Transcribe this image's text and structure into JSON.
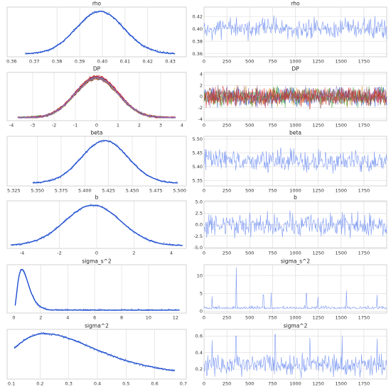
{
  "chart_data": [
    {
      "type": "line",
      "title": "rho",
      "kind": "density",
      "xlim": [
        0.358,
        0.437
      ],
      "xticks": [
        0.36,
        0.37,
        0.38,
        0.39,
        0.4,
        0.41,
        0.42,
        0.43
      ],
      "xticklabels": [
        "0.36",
        "0.37",
        "0.38",
        "0.39",
        "0.40",
        "0.41",
        "0.42",
        "0.43"
      ],
      "xgrid": [
        0.38,
        0.39,
        0.4,
        0.41,
        0.42
      ],
      "dist": {
        "mean": 0.399,
        "sd": 0.0105,
        "lo": 0.366,
        "hi": 0.432
      },
      "series": [
        {
          "color": "#1f4fd0",
          "shape": "gauss"
        }
      ]
    },
    {
      "type": "line",
      "title": "rho",
      "kind": "trace",
      "xlim": [
        0,
        2000
      ],
      "xticks": [
        0,
        250,
        500,
        750,
        1000,
        1250,
        1500,
        1750
      ],
      "xticklabels": [
        "0",
        "250",
        "500",
        "750",
        "1000",
        "1250",
        "1500",
        "1750"
      ],
      "ylim": [
        0.355,
        0.435
      ],
      "yticks": [
        0.36,
        0.38,
        0.4,
        0.42
      ],
      "yticklabels": [
        "0.36",
        "0.38",
        "0.40",
        "0.42"
      ],
      "trace": {
        "center": 0.399,
        "sd": 0.0105,
        "spread": 1.0
      },
      "series": [
        {
          "color": "#6f8ef2"
        }
      ]
    },
    {
      "type": "line",
      "title": "DP",
      "kind": "density",
      "xlim": [
        -4.2,
        4.2
      ],
      "xticks": [
        -4,
        -3,
        -2,
        -1,
        0,
        1,
        2,
        3,
        4
      ],
      "xticklabels": [
        "-4",
        "-3",
        "-2",
        "-1",
        "0",
        "1",
        "2",
        "3",
        "4"
      ],
      "xgrid": [
        -3,
        -2,
        -1,
        0,
        1,
        2,
        3
      ],
      "dist": {
        "mean": 0,
        "sd": 1.0,
        "lo": -3.7,
        "hi": 3.7
      },
      "series": [
        {
          "color": "#1f4fd0",
          "shape": "gauss"
        },
        {
          "color": "#d48a1a",
          "shape": "gauss"
        },
        {
          "color": "#2ca02c",
          "shape": "gauss"
        },
        {
          "color": "#d62728",
          "shape": "gauss"
        },
        {
          "color": "#8c564b",
          "shape": "gauss"
        },
        {
          "color": "#9467bd",
          "shape": "gauss"
        }
      ]
    },
    {
      "type": "line",
      "title": "DP",
      "kind": "trace",
      "xlim": [
        0,
        2000
      ],
      "xticks": [
        0,
        250,
        500,
        750,
        1000,
        1250,
        1500,
        1750
      ],
      "xticklabels": [
        "0",
        "250",
        "500",
        "750",
        "1000",
        "1250",
        "1500",
        "1750"
      ],
      "ylim": [
        -4.3,
        4.3
      ],
      "yticks": [
        -4,
        -2,
        0,
        2,
        4
      ],
      "yticklabels": [
        "-4",
        "-2",
        "0",
        "2",
        "4"
      ],
      "trace": {
        "center": 0,
        "sd": 1.0,
        "spread": 1.0
      },
      "series": [
        {
          "color": "#1f4fd0"
        },
        {
          "color": "#d48a1a"
        },
        {
          "color": "#2ca02c"
        },
        {
          "color": "#9467bd"
        },
        {
          "color": "#8c564b"
        },
        {
          "color": "#d62728"
        }
      ]
    },
    {
      "type": "line",
      "title": "beta",
      "kind": "density",
      "xlim": [
        5.318,
        5.507
      ],
      "xticks": [
        5.325,
        5.35,
        5.375,
        5.4,
        5.425,
        5.45,
        5.475,
        5.5
      ],
      "xticklabels": [
        "5.325",
        "5.350",
        "5.375",
        "5.400",
        "5.425",
        "5.450",
        "5.475",
        "5.500"
      ],
      "xgrid": [
        5.35,
        5.375,
        5.4,
        5.425,
        5.45,
        5.475
      ],
      "dist": {
        "mean": 5.421,
        "sd": 0.0245,
        "lo": 5.345,
        "hi": 5.498
      },
      "series": [
        {
          "color": "#1f4fd0",
          "shape": "gauss"
        }
      ]
    },
    {
      "type": "line",
      "title": "beta",
      "kind": "trace",
      "xlim": [
        0,
        2000
      ],
      "xticks": [
        0,
        250,
        500,
        750,
        1000,
        1250,
        1500,
        1750
      ],
      "xticklabels": [
        "0",
        "250",
        "500",
        "750",
        "1000",
        "1250",
        "1500",
        "1750"
      ],
      "ylim": [
        5.33,
        5.51
      ],
      "yticks": [
        5.35,
        5.4,
        5.45,
        5.5
      ],
      "yticklabels": [
        "5.35",
        "5.40",
        "5.45",
        "5.50"
      ],
      "trace": {
        "center": 5.421,
        "sd": 0.0245,
        "spread": 1.0
      },
      "series": [
        {
          "color": "#6f8ef2"
        }
      ]
    },
    {
      "type": "line",
      "title": "b",
      "kind": "density",
      "xlim": [
        -4.8,
        4.8
      ],
      "xticks": [
        -4,
        -2,
        0,
        2,
        4
      ],
      "xticklabels": [
        "-4",
        "-2",
        "0",
        "2",
        "4"
      ],
      "xgrid": [
        -2,
        0,
        2
      ],
      "dist": {
        "mean": -0.2,
        "sd": 1.5,
        "lo": -4.6,
        "hi": 4.6
      },
      "series": [
        {
          "color": "#1f4fd0",
          "shape": "gauss"
        }
      ]
    },
    {
      "type": "line",
      "title": "b",
      "kind": "trace",
      "xlim": [
        0,
        2000
      ],
      "xticks": [
        0,
        250,
        500,
        750,
        1000,
        1250,
        1500,
        1750
      ],
      "xticklabels": [
        "0",
        "250",
        "500",
        "750",
        "1000",
        "1250",
        "1500",
        "1750"
      ],
      "ylim": [
        -5.2,
        5.2
      ],
      "yticks": [
        -5.0,
        -2.5,
        0.0,
        2.5,
        5.0
      ],
      "yticklabels": [
        "-5.0",
        "-2.5",
        "0.0",
        "2.5",
        "5.0"
      ],
      "trace": {
        "center": -0.1,
        "sd": 1.5,
        "spread": 1.0
      },
      "series": [
        {
          "color": "#6f8ef2"
        }
      ]
    },
    {
      "type": "line",
      "title": "sigma_s^2",
      "kind": "density",
      "xlim": [
        -0.5,
        12.8
      ],
      "xticks": [
        0,
        2,
        4,
        6,
        8,
        10,
        12
      ],
      "xticklabels": [
        "0",
        "2",
        "4",
        "6",
        "8",
        "10",
        "12"
      ],
      "xgrid": [
        2,
        4,
        6,
        8,
        10
      ],
      "dist": {
        "mode": 0.6,
        "lo": 0.1,
        "hi": 12.3
      },
      "series": [
        {
          "color": "#1f4fd0",
          "shape": "skew"
        }
      ]
    },
    {
      "type": "line",
      "title": "sigma_s^2",
      "kind": "trace",
      "xlim": [
        0,
        2000
      ],
      "xticks": [
        0,
        250,
        500,
        750,
        1000,
        1250,
        1500,
        1750
      ],
      "xticklabels": [
        "0",
        "250",
        "500",
        "750",
        "1000",
        "1250",
        "1500",
        "1750"
      ],
      "ylim": [
        -0.5,
        13
      ],
      "yticks": [
        0,
        5,
        10
      ],
      "yticklabels": [
        "0",
        "5",
        "10"
      ],
      "trace": {
        "center": 0.9,
        "sd": 0.5,
        "spread": 1.0,
        "spikes": [
          [
            355,
            12.3
          ],
          [
            90,
            4.2
          ],
          [
            650,
            4.6
          ],
          [
            735,
            5.2
          ],
          [
            1120,
            5.0
          ],
          [
            1245,
            4.0
          ],
          [
            1560,
            5.8
          ],
          [
            1895,
            4.6
          ]
        ]
      },
      "series": [
        {
          "color": "#6f8ef2"
        }
      ]
    },
    {
      "type": "line",
      "title": "sigma^2",
      "kind": "density",
      "xlim": [
        0.085,
        0.71
      ],
      "xticks": [
        0.1,
        0.2,
        0.3,
        0.4,
        0.5,
        0.6,
        0.7
      ],
      "xticklabels": [
        "0.1",
        "0.2",
        "0.3",
        "0.4",
        "0.5",
        "0.6",
        "0.7"
      ],
      "xgrid": [
        0.2,
        0.3,
        0.4,
        0.5,
        0.6
      ],
      "dist": {
        "mode": 0.22,
        "lo": 0.11,
        "hi": 0.67
      },
      "series": [
        {
          "color": "#1f4fd0",
          "shape": "skew"
        }
      ]
    },
    {
      "type": "line",
      "title": "sigma^2",
      "kind": "trace",
      "xlim": [
        0,
        2000
      ],
      "xticks": [
        0,
        250,
        500,
        750,
        1000,
        1250,
        1500,
        1750
      ],
      "xticklabels": [
        "0",
        "250",
        "500",
        "750",
        "1000",
        "1250",
        "1500",
        "1750"
      ],
      "ylim": [
        0.08,
        0.68
      ],
      "yticks": [
        0.2,
        0.4,
        0.6
      ],
      "yticklabels": [
        "0.2",
        "0.4",
        "0.6"
      ],
      "trace": {
        "center": 0.25,
        "sd": 0.07,
        "spread": 1.0,
        "spikes": [
          [
            90,
            0.55
          ],
          [
            350,
            0.6
          ],
          [
            780,
            0.62
          ],
          [
            1160,
            0.58
          ],
          [
            1510,
            0.6
          ],
          [
            1895,
            0.57
          ]
        ]
      },
      "series": [
        {
          "color": "#6f8ef2"
        }
      ]
    }
  ]
}
